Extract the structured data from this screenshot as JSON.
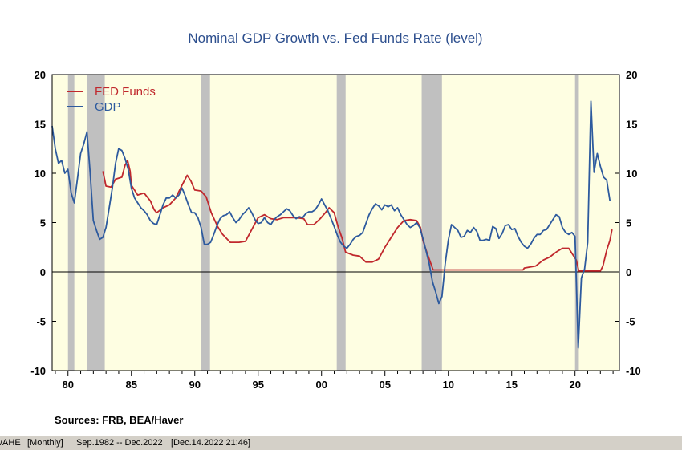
{
  "chart_data": {
    "type": "line",
    "title": "Nominal GDP Growth vs. Fed Funds Rate (level)",
    "ylim": [
      -10,
      20
    ],
    "yticks": [
      "20",
      "15",
      "10",
      "5",
      "0",
      "-5",
      "-10"
    ],
    "xlim": [
      1978.75,
      2023.5
    ],
    "xticks": [
      {
        "year": 1980,
        "label": "80"
      },
      {
        "year": 1985,
        "label": "85"
      },
      {
        "year": 1990,
        "label": "90"
      },
      {
        "year": 1995,
        "label": "95"
      },
      {
        "year": 2000,
        "label": "00"
      },
      {
        "year": 2005,
        "label": "05"
      },
      {
        "year": 2010,
        "label": "10"
      },
      {
        "year": 2015,
        "label": "15"
      },
      {
        "year": 2020,
        "label": "20"
      }
    ],
    "recessions": [
      [
        1980.0,
        1980.5
      ],
      [
        1981.5,
        1982.9
      ],
      [
        1990.5,
        1991.2
      ],
      [
        2001.2,
        2001.9
      ],
      [
        2007.9,
        2009.5
      ],
      [
        2020.0,
        2020.3
      ]
    ],
    "series": [
      {
        "name": "FED Funds",
        "color": "#c0282d",
        "points": [
          [
            1982.75,
            10.2
          ],
          [
            1982.9,
            9.3
          ],
          [
            1983.0,
            8.7
          ],
          [
            1983.4,
            8.6
          ],
          [
            1983.75,
            9.4
          ],
          [
            1984.25,
            9.6
          ],
          [
            1984.5,
            10.8
          ],
          [
            1984.7,
            11.3
          ],
          [
            1984.9,
            10.2
          ],
          [
            1985.0,
            8.8
          ],
          [
            1985.5,
            7.8
          ],
          [
            1986.0,
            8.0
          ],
          [
            1986.5,
            7.2
          ],
          [
            1986.8,
            6.3
          ],
          [
            1987.0,
            6.0
          ],
          [
            1987.5,
            6.5
          ],
          [
            1988.0,
            6.8
          ],
          [
            1988.5,
            7.5
          ],
          [
            1989.0,
            8.8
          ],
          [
            1989.4,
            9.8
          ],
          [
            1989.7,
            9.2
          ],
          [
            1990.0,
            8.3
          ],
          [
            1990.5,
            8.2
          ],
          [
            1990.9,
            7.6
          ],
          [
            1991.3,
            6.0
          ],
          [
            1991.8,
            4.6
          ],
          [
            1992.2,
            3.8
          ],
          [
            1992.8,
            3.0
          ],
          [
            1993.5,
            3.0
          ],
          [
            1994.0,
            3.1
          ],
          [
            1994.5,
            4.3
          ],
          [
            1995.0,
            5.5
          ],
          [
            1995.5,
            5.8
          ],
          [
            1996.0,
            5.4
          ],
          [
            1996.5,
            5.3
          ],
          [
            1997.0,
            5.5
          ],
          [
            1998.0,
            5.5
          ],
          [
            1998.6,
            5.4
          ],
          [
            1998.9,
            4.8
          ],
          [
            1999.4,
            4.8
          ],
          [
            1999.9,
            5.4
          ],
          [
            2000.3,
            6.0
          ],
          [
            2000.6,
            6.5
          ],
          [
            2001.0,
            6.0
          ],
          [
            2001.3,
            4.6
          ],
          [
            2001.6,
            3.5
          ],
          [
            2001.9,
            2.0
          ],
          [
            2002.5,
            1.7
          ],
          [
            2003.0,
            1.6
          ],
          [
            2003.5,
            1.0
          ],
          [
            2004.0,
            1.0
          ],
          [
            2004.5,
            1.3
          ],
          [
            2005.0,
            2.5
          ],
          [
            2005.5,
            3.5
          ],
          [
            2006.0,
            4.5
          ],
          [
            2006.5,
            5.2
          ],
          [
            2007.0,
            5.3
          ],
          [
            2007.5,
            5.2
          ],
          [
            2007.8,
            4.5
          ],
          [
            2008.0,
            3.2
          ],
          [
            2008.3,
            2.0
          ],
          [
            2008.8,
            0.2
          ],
          [
            2009.0,
            0.2
          ],
          [
            2015.9,
            0.2
          ],
          [
            2016.0,
            0.4
          ],
          [
            2016.9,
            0.6
          ],
          [
            2017.5,
            1.2
          ],
          [
            2018.0,
            1.5
          ],
          [
            2018.5,
            2.0
          ],
          [
            2019.0,
            2.4
          ],
          [
            2019.5,
            2.4
          ],
          [
            2019.8,
            1.8
          ],
          [
            2020.1,
            1.2
          ],
          [
            2020.3,
            0.1
          ],
          [
            2022.0,
            0.1
          ],
          [
            2022.2,
            0.6
          ],
          [
            2022.5,
            2.2
          ],
          [
            2022.75,
            3.2
          ],
          [
            2022.92,
            4.3
          ]
        ]
      },
      {
        "name": "GDP",
        "color": "#2d5a9e",
        "points": [
          [
            1978.75,
            14.8
          ],
          [
            1979.0,
            12.5
          ],
          [
            1979.25,
            11.0
          ],
          [
            1979.5,
            11.3
          ],
          [
            1979.75,
            10.0
          ],
          [
            1980.0,
            10.4
          ],
          [
            1980.25,
            8.0
          ],
          [
            1980.5,
            7.0
          ],
          [
            1980.75,
            9.5
          ],
          [
            1981.0,
            12.0
          ],
          [
            1981.25,
            13.0
          ],
          [
            1981.5,
            14.2
          ],
          [
            1981.75,
            10.0
          ],
          [
            1982.0,
            5.2
          ],
          [
            1982.25,
            4.2
          ],
          [
            1982.5,
            3.3
          ],
          [
            1982.75,
            3.5
          ],
          [
            1983.0,
            4.5
          ],
          [
            1983.25,
            6.5
          ],
          [
            1983.5,
            8.5
          ],
          [
            1983.75,
            11.0
          ],
          [
            1984.0,
            12.5
          ],
          [
            1984.25,
            12.3
          ],
          [
            1984.5,
            11.5
          ],
          [
            1984.75,
            10.4
          ],
          [
            1985.0,
            8.5
          ],
          [
            1985.25,
            7.5
          ],
          [
            1985.5,
            7.0
          ],
          [
            1985.75,
            6.5
          ],
          [
            1986.0,
            6.2
          ],
          [
            1986.25,
            5.8
          ],
          [
            1986.5,
            5.2
          ],
          [
            1986.75,
            4.9
          ],
          [
            1987.0,
            4.8
          ],
          [
            1987.25,
            5.8
          ],
          [
            1987.5,
            6.8
          ],
          [
            1987.75,
            7.5
          ],
          [
            1988.0,
            7.5
          ],
          [
            1988.25,
            7.8
          ],
          [
            1988.5,
            7.5
          ],
          [
            1988.75,
            7.8
          ],
          [
            1989.0,
            8.5
          ],
          [
            1989.25,
            7.7
          ],
          [
            1989.5,
            6.8
          ],
          [
            1989.75,
            6.0
          ],
          [
            1990.0,
            6.0
          ],
          [
            1990.25,
            5.5
          ],
          [
            1990.5,
            4.5
          ],
          [
            1990.75,
            2.8
          ],
          [
            1991.0,
            2.8
          ],
          [
            1991.25,
            3.0
          ],
          [
            1991.5,
            3.8
          ],
          [
            1991.75,
            4.7
          ],
          [
            1992.0,
            5.4
          ],
          [
            1992.25,
            5.7
          ],
          [
            1992.5,
            5.8
          ],
          [
            1992.75,
            6.1
          ],
          [
            1993.0,
            5.5
          ],
          [
            1993.25,
            5.0
          ],
          [
            1993.5,
            5.3
          ],
          [
            1993.75,
            5.8
          ],
          [
            1994.0,
            6.1
          ],
          [
            1994.25,
            6.5
          ],
          [
            1994.5,
            6.0
          ],
          [
            1994.75,
            5.3
          ],
          [
            1995.0,
            4.9
          ],
          [
            1995.25,
            5.0
          ],
          [
            1995.5,
            5.5
          ],
          [
            1995.75,
            5.0
          ],
          [
            1996.0,
            4.8
          ],
          [
            1996.25,
            5.3
          ],
          [
            1996.5,
            5.6
          ],
          [
            1996.75,
            5.8
          ],
          [
            1997.0,
            6.1
          ],
          [
            1997.25,
            6.4
          ],
          [
            1997.5,
            6.2
          ],
          [
            1997.75,
            5.7
          ],
          [
            1998.0,
            5.4
          ],
          [
            1998.25,
            5.6
          ],
          [
            1998.5,
            5.5
          ],
          [
            1998.75,
            5.9
          ],
          [
            1999.0,
            6.1
          ],
          [
            1999.25,
            6.1
          ],
          [
            1999.5,
            6.3
          ],
          [
            1999.75,
            6.8
          ],
          [
            2000.0,
            7.4
          ],
          [
            2000.25,
            6.8
          ],
          [
            2000.5,
            6.2
          ],
          [
            2000.75,
            5.4
          ],
          [
            2001.0,
            4.6
          ],
          [
            2001.25,
            3.7
          ],
          [
            2001.5,
            3.0
          ],
          [
            2001.75,
            2.6
          ],
          [
            2002.0,
            2.4
          ],
          [
            2002.25,
            2.8
          ],
          [
            2002.5,
            3.3
          ],
          [
            2002.75,
            3.6
          ],
          [
            2003.0,
            3.7
          ],
          [
            2003.25,
            4.0
          ],
          [
            2003.5,
            4.9
          ],
          [
            2003.75,
            5.8
          ],
          [
            2004.0,
            6.4
          ],
          [
            2004.25,
            6.9
          ],
          [
            2004.5,
            6.7
          ],
          [
            2004.75,
            6.3
          ],
          [
            2005.0,
            6.8
          ],
          [
            2005.25,
            6.6
          ],
          [
            2005.5,
            6.8
          ],
          [
            2005.75,
            6.2
          ],
          [
            2006.0,
            6.5
          ],
          [
            2006.25,
            5.8
          ],
          [
            2006.5,
            5.3
          ],
          [
            2006.75,
            4.8
          ],
          [
            2007.0,
            4.5
          ],
          [
            2007.25,
            4.7
          ],
          [
            2007.5,
            5.0
          ],
          [
            2007.75,
            4.5
          ],
          [
            2008.0,
            3.4
          ],
          [
            2008.25,
            2.1
          ],
          [
            2008.5,
            0.8
          ],
          [
            2008.75,
            -1.0
          ],
          [
            2009.0,
            -2.0
          ],
          [
            2009.25,
            -3.2
          ],
          [
            2009.5,
            -2.5
          ],
          [
            2009.75,
            0.8
          ],
          [
            2010.0,
            3.2
          ],
          [
            2010.25,
            4.8
          ],
          [
            2010.5,
            4.5
          ],
          [
            2010.75,
            4.2
          ],
          [
            2011.0,
            3.5
          ],
          [
            2011.25,
            3.6
          ],
          [
            2011.5,
            4.2
          ],
          [
            2011.75,
            4.0
          ],
          [
            2012.0,
            4.5
          ],
          [
            2012.25,
            4.1
          ],
          [
            2012.5,
            3.2
          ],
          [
            2012.75,
            3.2
          ],
          [
            2013.0,
            3.3
          ],
          [
            2013.25,
            3.2
          ],
          [
            2013.5,
            4.6
          ],
          [
            2013.75,
            4.4
          ],
          [
            2014.0,
            3.4
          ],
          [
            2014.25,
            3.9
          ],
          [
            2014.5,
            4.7
          ],
          [
            2014.75,
            4.8
          ],
          [
            2015.0,
            4.3
          ],
          [
            2015.25,
            4.4
          ],
          [
            2015.5,
            3.6
          ],
          [
            2015.75,
            3.0
          ],
          [
            2016.0,
            2.6
          ],
          [
            2016.25,
            2.4
          ],
          [
            2016.5,
            2.8
          ],
          [
            2016.75,
            3.4
          ],
          [
            2017.0,
            3.8
          ],
          [
            2017.25,
            3.8
          ],
          [
            2017.5,
            4.2
          ],
          [
            2017.75,
            4.3
          ],
          [
            2018.0,
            4.8
          ],
          [
            2018.25,
            5.3
          ],
          [
            2018.5,
            5.8
          ],
          [
            2018.75,
            5.6
          ],
          [
            2019.0,
            4.5
          ],
          [
            2019.25,
            4.0
          ],
          [
            2019.5,
            3.8
          ],
          [
            2019.75,
            4.0
          ],
          [
            2020.0,
            3.6
          ],
          [
            2020.25,
            -7.7
          ],
          [
            2020.5,
            -0.6
          ],
          [
            2020.75,
            0.3
          ],
          [
            2021.0,
            3.0
          ],
          [
            2021.25,
            17.3
          ],
          [
            2021.5,
            10.1
          ],
          [
            2021.75,
            12.0
          ],
          [
            2022.0,
            10.7
          ],
          [
            2022.25,
            9.6
          ],
          [
            2022.5,
            9.3
          ],
          [
            2022.75,
            7.2
          ]
        ]
      }
    ]
  },
  "sources": "Sources:  FRB, BEA/Haver",
  "statusbar": {
    "code": "/AHE",
    "freq": "[Monthly]",
    "range": "Sep.1982 -- Dec.2022",
    "stamp": "[Dec.14.2022 21:46]"
  }
}
